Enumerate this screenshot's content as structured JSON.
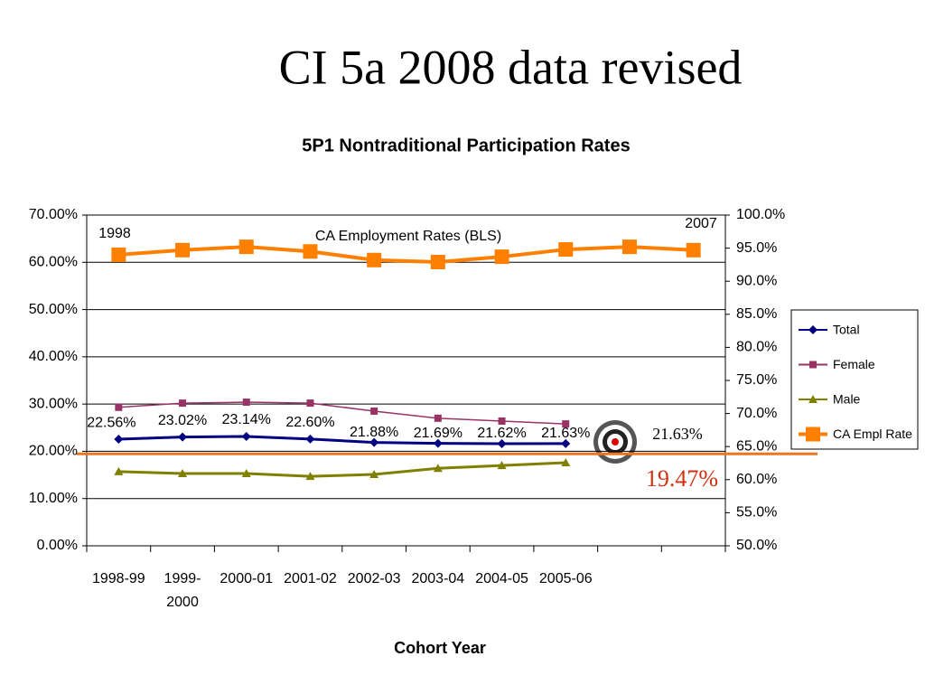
{
  "slide_title": "CI 5a 2008 data revised",
  "chart_data": {
    "type": "line",
    "title": "5P1 Nontraditional Participation Rates",
    "x_label": "Cohort Year",
    "categories": [
      "1998-99",
      "1999-2000",
      "2000-01",
      "2001-02",
      "2002-03",
      "2003-04",
      "2004-05",
      "2005-06",
      null,
      null
    ],
    "ylim": [
      0,
      70
    ],
    "yticks": [
      {
        "value": 0,
        "label": "0.00%"
      },
      {
        "value": 10,
        "label": "10.00%"
      },
      {
        "value": 20,
        "label": "20.00%"
      },
      {
        "value": 30,
        "label": "30.00%"
      },
      {
        "value": 40,
        "label": "40.00%"
      },
      {
        "value": 50,
        "label": "50.00%"
      },
      {
        "value": 60,
        "label": "60.00%"
      },
      {
        "value": 70,
        "label": "70.00%"
      }
    ],
    "y2lim": [
      50,
      100
    ],
    "y2ticks": [
      {
        "value": 50,
        "label": "50.0%"
      },
      {
        "value": 55,
        "label": "55.0%"
      },
      {
        "value": 60,
        "label": "60.0%"
      },
      {
        "value": 65,
        "label": "65.0%"
      },
      {
        "value": 70,
        "label": "70.0%"
      },
      {
        "value": 75,
        "label": "75.0%"
      },
      {
        "value": 80,
        "label": "80.0%"
      },
      {
        "value": 85,
        "label": "85.0%"
      },
      {
        "value": 90,
        "label": "90.0%"
      },
      {
        "value": 95,
        "label": "95.0%"
      },
      {
        "value": 100,
        "label": "100.0%"
      }
    ],
    "grid": true,
    "legend": "right",
    "series": [
      {
        "name": "Total",
        "color": "#000080",
        "marker": "diamond",
        "values": [
          22.56,
          23.02,
          23.14,
          22.6,
          21.88,
          21.69,
          21.62,
          21.63,
          null,
          null
        ],
        "value_labels": [
          "22.56%",
          "23.02%",
          "23.14%",
          "22.60%",
          "21.88%",
          "21.69%",
          "21.62%",
          "21.63%",
          null,
          null
        ]
      },
      {
        "name": "Female",
        "color": "#993366",
        "marker": "square",
        "values": [
          29.3,
          30.2,
          30.4,
          30.2,
          28.5,
          27.0,
          26.4,
          25.8,
          null,
          null
        ]
      },
      {
        "name": "Male",
        "color": "#808000",
        "marker": "triangle",
        "values": [
          15.7,
          15.3,
          15.3,
          14.7,
          15.1,
          16.4,
          17.0,
          17.6,
          null,
          null
        ]
      },
      {
        "name": "CA Empl Rate",
        "color": "#ff8000",
        "marker": "bigsquare",
        "axis": "y2",
        "values": [
          94.0,
          94.7,
          95.2,
          94.5,
          93.2,
          92.9,
          93.7,
          94.8,
          95.2,
          94.7
        ]
      }
    ],
    "annotations": [
      "1998",
      "2007",
      "CA Employment Rates (BLS)",
      "21.63%"
    ],
    "target_line": {
      "value": 19.47,
      "label": "19.47%",
      "color": "#e87722"
    }
  }
}
